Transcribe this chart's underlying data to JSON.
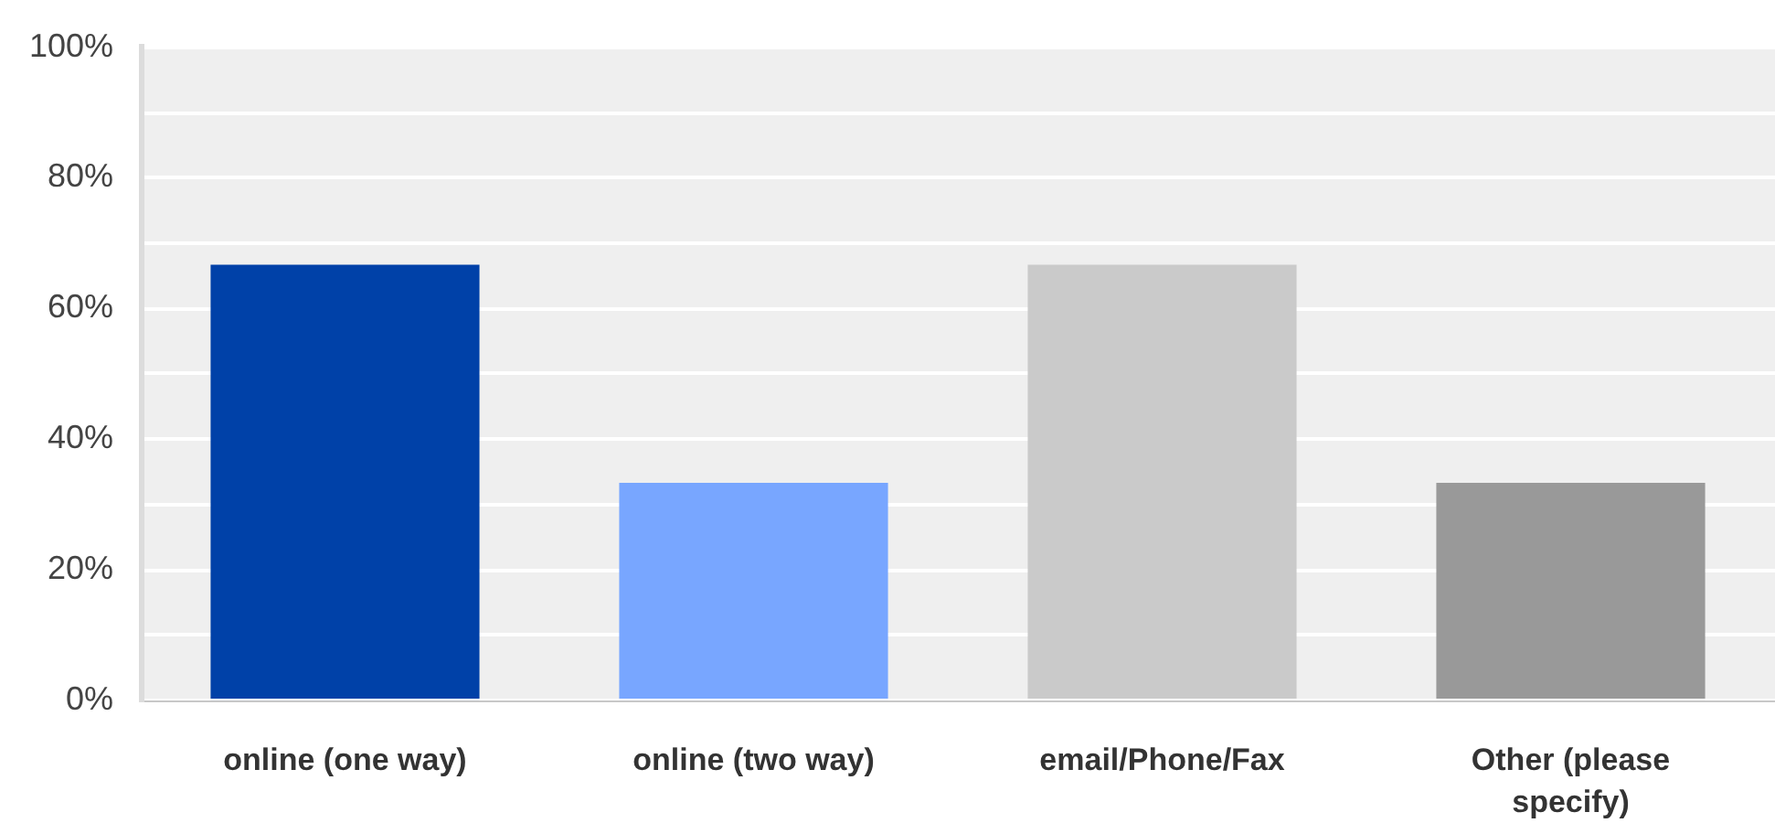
{
  "chart_data": {
    "type": "bar",
    "categories": [
      "online (one way)",
      "online (two way)",
      "email/Phone/Fax",
      "Other (please specify)"
    ],
    "values": [
      66.7,
      33.3,
      66.7,
      33.3
    ],
    "colors": [
      "#0041a8",
      "#78a6ff",
      "#cacaca",
      "#999999"
    ],
    "ylim": [
      0,
      100
    ],
    "yticks": [
      {
        "value": 0,
        "label": "0%"
      },
      {
        "value": 10,
        "label": null
      },
      {
        "value": 20,
        "label": "20%"
      },
      {
        "value": 30,
        "label": null
      },
      {
        "value": 40,
        "label": "40%"
      },
      {
        "value": 50,
        "label": null
      },
      {
        "value": 60,
        "label": "60%"
      },
      {
        "value": 70,
        "label": null
      },
      {
        "value": 80,
        "label": "80%"
      },
      {
        "value": 90,
        "label": null
      },
      {
        "value": 100,
        "label": "100%"
      }
    ],
    "grid": "y",
    "legend": false
  }
}
